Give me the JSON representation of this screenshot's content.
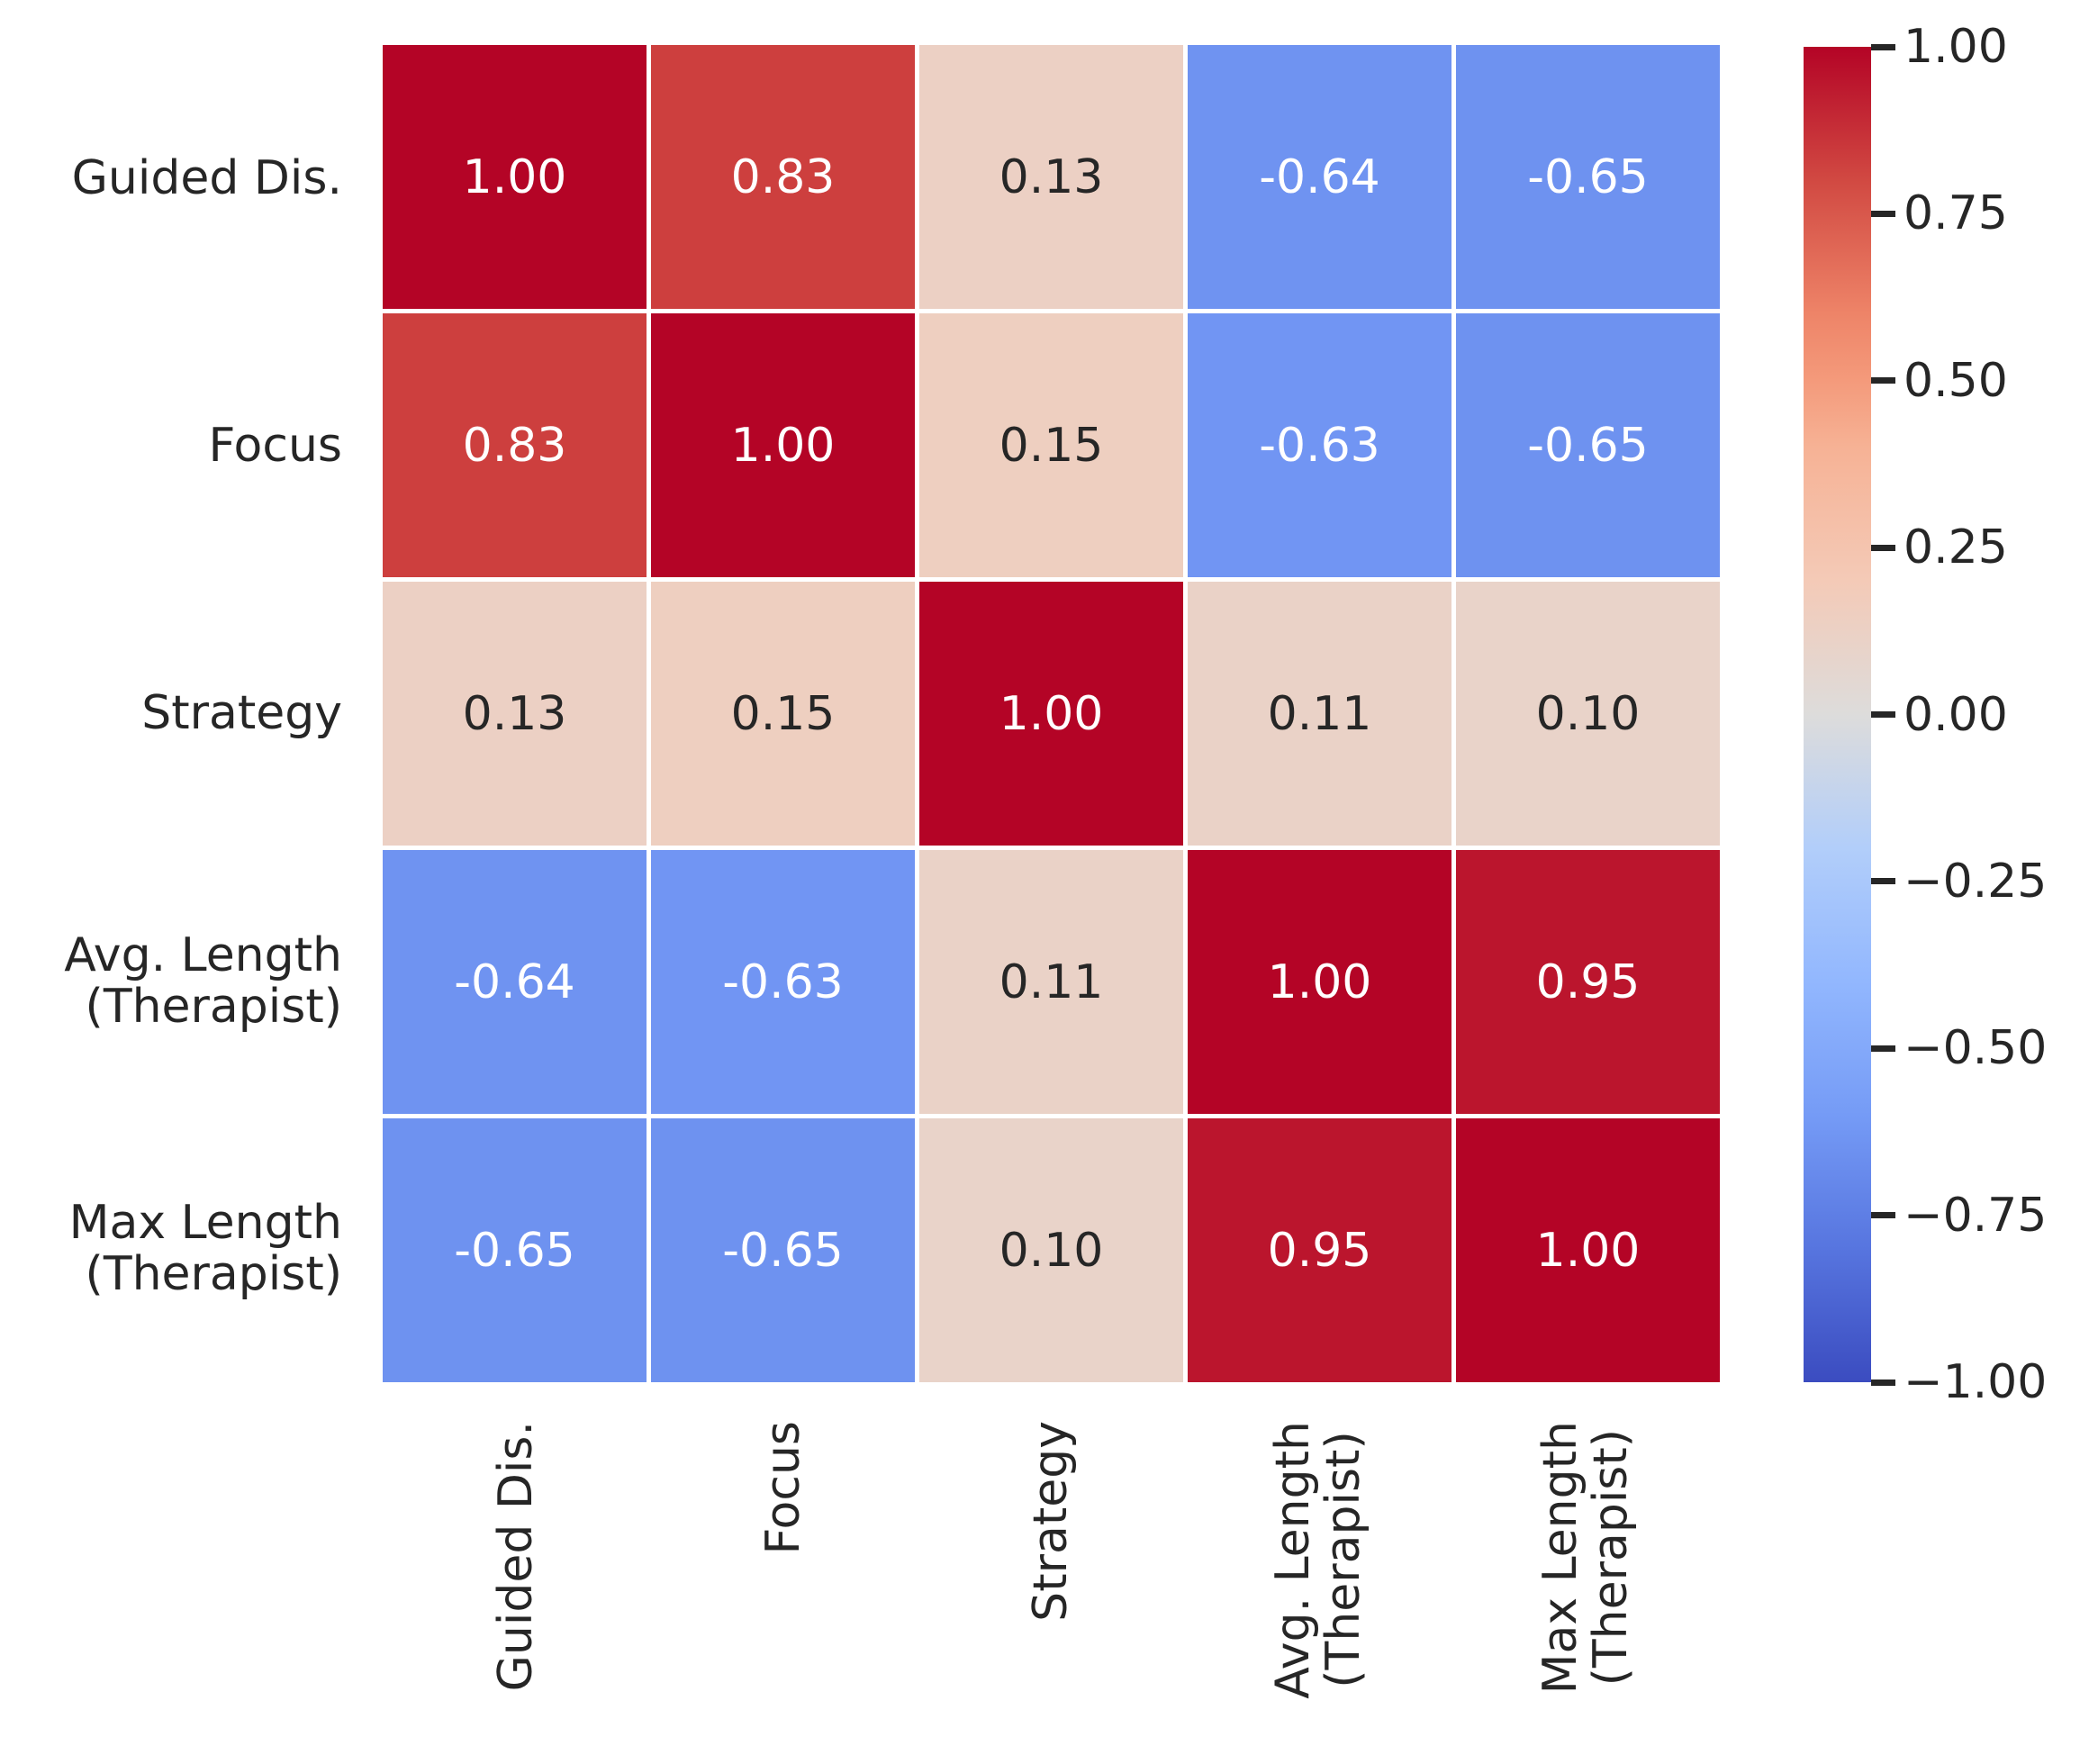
{
  "chart_data": {
    "type": "heatmap",
    "title": "",
    "categories": [
      "Guided Dis.",
      "Focus",
      "Strategy",
      "Avg. Length\n(Therapist)",
      "Max Length\n(Therapist)"
    ],
    "matrix": [
      [
        1.0,
        0.83,
        0.13,
        -0.64,
        -0.65
      ],
      [
        0.83,
        1.0,
        0.15,
        -0.63,
        -0.65
      ],
      [
        0.13,
        0.15,
        1.0,
        0.11,
        0.1
      ],
      [
        -0.64,
        -0.63,
        0.11,
        1.0,
        0.95
      ],
      [
        -0.65,
        -0.65,
        0.1,
        0.95,
        1.0
      ]
    ],
    "annot_format": ".2f",
    "value_range": [
      -1,
      1
    ],
    "grid_line_color": "#ffffff",
    "background": "#ffffff",
    "text_color": "#262626",
    "annot_color_light": "#ffffff",
    "annot_color_dark": "#262626",
    "colormap": {
      "name": "coolwarm",
      "stops": [
        {
          "v": -1.0,
          "c": "#3b4cc0"
        },
        {
          "v": -0.8,
          "c": "#5775df"
        },
        {
          "v": -0.6,
          "c": "#759bf6"
        },
        {
          "v": -0.4,
          "c": "#92b7fe"
        },
        {
          "v": -0.2,
          "c": "#b2cefa"
        },
        {
          "v": 0.0,
          "c": "#dddcdb"
        },
        {
          "v": 0.2,
          "c": "#f4cab7"
        },
        {
          "v": 0.4,
          "c": "#f6b295"
        },
        {
          "v": 0.5,
          "c": "#f49a7b"
        },
        {
          "v": 0.6,
          "c": "#ee8468"
        },
        {
          "v": 0.8,
          "c": "#d14942"
        },
        {
          "v": 1.0,
          "c": "#b40426"
        }
      ]
    },
    "colorbar": {
      "position": "right",
      "tick_labels": [
        "1.00",
        "0.75",
        "0.50",
        "0.25",
        "0.00",
        "−0.25",
        "−0.50",
        "−0.75",
        "−1.00"
      ],
      "tick_values": [
        1.0,
        0.75,
        0.5,
        0.25,
        0.0,
        -0.25,
        -0.5,
        -0.75,
        -1.0
      ]
    }
  }
}
